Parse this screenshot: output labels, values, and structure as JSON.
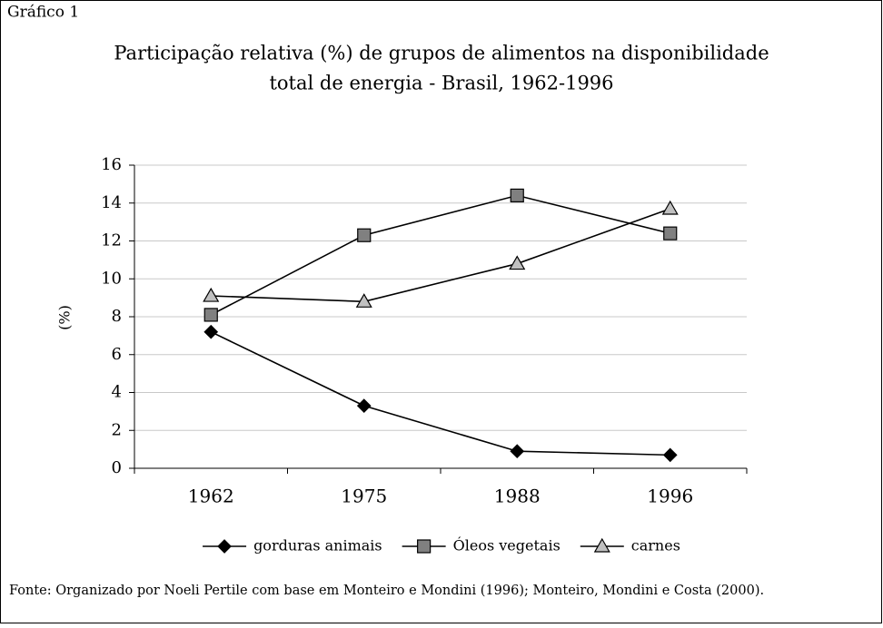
{
  "chart_data": {
    "type": "line",
    "label": "Gráfico 1",
    "title": [
      "Participação relativa (%) de grupos de alimentos na disponibilidade",
      "total de energia - Brasil, 1962-1996"
    ],
    "y_label": "(%)",
    "categories": [
      "1962",
      "1975",
      "1988",
      "1996"
    ],
    "series": [
      {
        "name": "gorduras animais",
        "color": "#000000",
        "marker": "diamond",
        "marker_color": "#000000",
        "values": [
          7.2,
          3.3,
          0.9,
          0.7
        ]
      },
      {
        "name": "Óleos vegetais",
        "color": "#000000",
        "marker": "square",
        "marker_color": "#808080",
        "values": [
          8.1,
          12.3,
          14.4,
          12.4
        ]
      },
      {
        "name": "carnes",
        "color": "#000000",
        "marker": "triangle",
        "marker_color": "#c0c0c0",
        "values": [
          9.1,
          8.8,
          10.8,
          13.7
        ]
      }
    ],
    "ylim": [
      0,
      16
    ],
    "yticks": [
      0,
      2,
      4,
      6,
      8,
      10,
      12,
      14,
      16
    ],
    "grid": true,
    "legend": "bottom",
    "source": "Fonte: Organizado por Noeli Pertile com base em Monteiro e Mondini (1996); Monteiro, Mondini e Costa (2000)."
  }
}
